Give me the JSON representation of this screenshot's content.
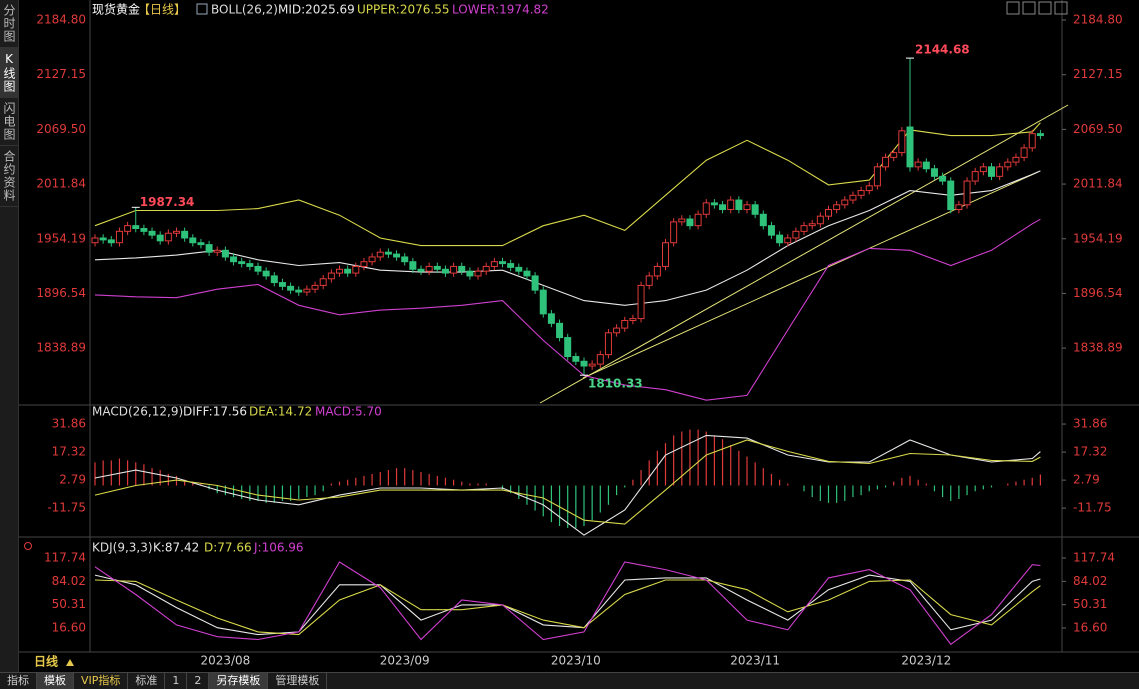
{
  "sidebar": [
    "分时图",
    "K线图",
    "闪电图",
    "合约资料"
  ],
  "period": "日线",
  "tabs": [
    "指标",
    "模板",
    "VIP指标",
    "标准",
    "1",
    "2",
    "另存模板",
    "管理模板"
  ],
  "chart_data": [
    {
      "type": "candlestick",
      "title": "现货黄金",
      "period": "【日线】",
      "indicator": "BOLL(26,2)",
      "up_color": "#e03a3a",
      "down_color": "#2fc27a",
      "categories": [
        null,
        null,
        null,
        null,
        null,
        null,
        null,
        null,
        null,
        null,
        null,
        null,
        null,
        null,
        null,
        null,
        "2023/08",
        null,
        null,
        null,
        null,
        null,
        null,
        null,
        null,
        null,
        null,
        null,
        null,
        null,
        null,
        null,
        null,
        null,
        null,
        null,
        null,
        null,
        "2023/09",
        null,
        null,
        null,
        null,
        null,
        null,
        null,
        null,
        null,
        null,
        null,
        null,
        null,
        null,
        null,
        null,
        null,
        null,
        null,
        null,
        "2023/10",
        null,
        null,
        null,
        null,
        null,
        null,
        null,
        null,
        null,
        null,
        null,
        null,
        null,
        null,
        null,
        null,
        null,
        null,
        null,
        null,
        null,
        "2023/11",
        null,
        null,
        null,
        null,
        null,
        null,
        null,
        null,
        null,
        null,
        null,
        null,
        null,
        null,
        null,
        null,
        null,
        null,
        null,
        null,
        "2023/12",
        null,
        null,
        null,
        null,
        null,
        null,
        null,
        null,
        null,
        null,
        null,
        null,
        null,
        null
      ],
      "candles": [
        [
          1950,
          1959,
          1946,
          1955
        ],
        [
          1955,
          1959,
          1949,
          1953
        ],
        [
          1953,
          1957,
          1946,
          1950
        ],
        [
          1950,
          1966,
          1946,
          1962
        ],
        [
          1962,
          1972,
          1958,
          1968
        ],
        [
          1968,
          1987.34,
          1961,
          1965
        ],
        [
          1965,
          1969,
          1958,
          1962
        ],
        [
          1962,
          1966,
          1954,
          1958
        ],
        [
          1958,
          1962,
          1948,
          1952
        ],
        [
          1952,
          1964,
          1948,
          1960
        ],
        [
          1960,
          1966,
          1956,
          1962
        ],
        [
          1962,
          1966,
          1951,
          1955
        ],
        [
          1955,
          1959,
          1946,
          1950
        ],
        [
          1950,
          1954,
          1944,
          1948
        ],
        [
          1948,
          1952,
          1936,
          1940
        ],
        [
          1940,
          1946,
          1936,
          1942
        ],
        [
          1942,
          1946,
          1931,
          1935
        ],
        [
          1935,
          1939,
          1926,
          1930
        ],
        [
          1930,
          1934,
          1924,
          1928
        ],
        [
          1928,
          1932,
          1921,
          1925
        ],
        [
          1925,
          1929,
          1916,
          1920
        ],
        [
          1920,
          1924,
          1911,
          1915
        ],
        [
          1915,
          1919,
          1904,
          1908
        ],
        [
          1908,
          1912,
          1900,
          1904
        ],
        [
          1904,
          1908,
          1896,
          1900
        ],
        [
          1900,
          1904,
          1894,
          1898
        ],
        [
          1898,
          1905,
          1894,
          1901
        ],
        [
          1901,
          1909,
          1897,
          1905
        ],
        [
          1905,
          1916,
          1901,
          1912
        ],
        [
          1912,
          1922,
          1908,
          1918
        ],
        [
          1918,
          1926,
          1914,
          1922
        ],
        [
          1922,
          1926,
          1914,
          1918
        ],
        [
          1918,
          1929,
          1914,
          1925
        ],
        [
          1925,
          1934,
          1921,
          1930
        ],
        [
          1930,
          1939,
          1926,
          1935
        ],
        [
          1935,
          1944,
          1931,
          1940
        ],
        [
          1940,
          1944,
          1934,
          1938
        ],
        [
          1938,
          1942,
          1931,
          1935
        ],
        [
          1935,
          1939,
          1926,
          1930
        ],
        [
          1930,
          1934,
          1918,
          1922
        ],
        [
          1922,
          1926,
          1916,
          1920
        ],
        [
          1920,
          1929,
          1916,
          1925
        ],
        [
          1925,
          1929,
          1918,
          1922
        ],
        [
          1922,
          1926,
          1914,
          1918
        ],
        [
          1918,
          1929,
          1914,
          1925
        ],
        [
          1925,
          1929,
          1916,
          1920
        ],
        [
          1920,
          1924,
          1911,
          1915
        ],
        [
          1915,
          1924,
          1911,
          1920
        ],
        [
          1920,
          1929,
          1916,
          1925
        ],
        [
          1925,
          1934,
          1921,
          1930
        ],
        [
          1930,
          1934,
          1924,
          1928
        ],
        [
          1928,
          1932,
          1920,
          1924
        ],
        [
          1924,
          1928,
          1916,
          1920
        ],
        [
          1920,
          1924,
          1911,
          1915
        ],
        [
          1915,
          1919,
          1896,
          1900
        ],
        [
          1900,
          1904,
          1871,
          1875
        ],
        [
          1875,
          1879,
          1861,
          1865
        ],
        [
          1865,
          1869,
          1846,
          1850
        ],
        [
          1850,
          1854,
          1826,
          1830
        ],
        [
          1830,
          1834,
          1821,
          1825
        ],
        [
          1825,
          1829,
          1810.33,
          1820
        ],
        [
          1820,
          1826,
          1816,
          1822
        ],
        [
          1822,
          1836,
          1818,
          1832
        ],
        [
          1832,
          1859,
          1828,
          1855
        ],
        [
          1855,
          1864,
          1851,
          1860
        ],
        [
          1860,
          1872,
          1856,
          1868
        ],
        [
          1868,
          1874,
          1864,
          1870
        ],
        [
          1870,
          1909,
          1866,
          1905
        ],
        [
          1905,
          1919,
          1901,
          1915
        ],
        [
          1915,
          1929,
          1911,
          1925
        ],
        [
          1925,
          1954,
          1921,
          1950
        ],
        [
          1950,
          1976,
          1946,
          1972
        ],
        [
          1972,
          1979,
          1968,
          1975
        ],
        [
          1975,
          1979,
          1964,
          1968
        ],
        [
          1968,
          1984,
          1964,
          1980
        ],
        [
          1980,
          1996,
          1976,
          1992
        ],
        [
          1992,
          1996,
          1986,
          1990
        ],
        [
          1990,
          1994,
          1981,
          1985
        ],
        [
          1985,
          1999,
          1981,
          1995
        ],
        [
          1995,
          1999,
          1981,
          1985
        ],
        [
          1985,
          1994,
          1981,
          1990
        ],
        [
          1990,
          1994,
          1976,
          1980
        ],
        [
          1980,
          1984,
          1964,
          1968
        ],
        [
          1968,
          1972,
          1954,
          1958
        ],
        [
          1958,
          1962,
          1946,
          1950
        ],
        [
          1950,
          1959,
          1946,
          1955
        ],
        [
          1955,
          1966,
          1951,
          1962
        ],
        [
          1962,
          1972,
          1958,
          1968
        ],
        [
          1968,
          1974,
          1964,
          1970
        ],
        [
          1970,
          1982,
          1966,
          1978
        ],
        [
          1978,
          1989,
          1974,
          1985
        ],
        [
          1985,
          1994,
          1981,
          1990
        ],
        [
          1990,
          1999,
          1986,
          1995
        ],
        [
          1995,
          2004,
          1991,
          2000
        ],
        [
          2000,
          2009,
          1996,
          2005
        ],
        [
          2005,
          2014,
          2001,
          2010
        ],
        [
          2010,
          2034,
          2006,
          2030
        ],
        [
          2030,
          2044,
          2026,
          2040
        ],
        [
          2040,
          2049,
          2036,
          2045
        ],
        [
          2045,
          2072,
          2041,
          2068
        ],
        [
          2072,
          2144.68,
          2025,
          2030
        ],
        [
          2030,
          2039,
          2026,
          2035
        ],
        [
          2035,
          2039,
          2024,
          2028
        ],
        [
          2028,
          2032,
          2016,
          2020
        ],
        [
          2020,
          2024,
          2011,
          2015
        ],
        [
          2015,
          2019,
          1981,
          1985
        ],
        [
          1985,
          1994,
          1981,
          1990
        ],
        [
          1990,
          2019,
          1986,
          2015
        ],
        [
          2015,
          2029,
          2011,
          2025
        ],
        [
          2025,
          2034,
          2021,
          2030
        ],
        [
          2030,
          2034,
          2016,
          2020
        ],
        [
          2020,
          2034,
          2016,
          2030
        ],
        [
          2030,
          2039,
          2026,
          2035
        ],
        [
          2035,
          2044,
          2031,
          2040
        ],
        [
          2040,
          2054,
          2036,
          2050
        ],
        [
          2050,
          2069,
          2046,
          2065
        ],
        [
          2065,
          2069,
          2059,
          2063
        ]
      ],
      "ylim": [
        1781,
        2197.5
      ],
      "yticks": [
        {
          "value": 2184.8,
          "label": "2184.80"
        },
        2127.15,
        {
          "value": 2069.5,
          "label": "2069.50"
        },
        2011.84,
        1954.19,
        1896.54,
        1838.89
      ],
      "x": [
        0,
        5,
        10,
        15,
        20,
        25,
        30,
        35,
        40,
        45,
        50,
        55,
        60,
        65,
        70,
        75,
        80,
        85,
        90,
        95,
        100,
        105,
        110,
        115,
        116
      ],
      "series": [
        {
          "name": "MID:2025.69",
          "color": "#e8e8e8",
          "values": [
            1932,
            1934,
            1937,
            1942,
            1932,
            1926,
            1929,
            1921,
            1919,
            1919,
            1921,
            1905,
            1889,
            1884,
            1889,
            1900,
            1921,
            1947,
            1968,
            1984,
            2005,
            2000,
            2005,
            2022,
            2025.69
          ]
        },
        {
          "name": "UPPER:2076.55",
          "color": "#d8d84a",
          "values": [
            1968,
            1984,
            1984,
            1984,
            1986,
            1995,
            1979,
            1955,
            1947,
            1947,
            1947,
            1968,
            1979,
            1963,
            2000,
            2037,
            2058,
            2037,
            2011,
            2016,
            2069,
            2063,
            2063,
            2067,
            2076.55
          ]
        },
        {
          "name": "LOWER:1974.82",
          "color": "#d040d0",
          "values": [
            1895,
            1893,
            1892,
            1901,
            1906,
            1884,
            1874,
            1879,
            1881,
            1884,
            1889,
            1847,
            1810,
            1800,
            1795,
            1784,
            1789,
            1858,
            1926,
            1944,
            1942,
            1926,
            1942,
            1970,
            1974.82
          ]
        }
      ]
    },
    {
      "type": "macd",
      "title": "MACD(26,12,9)",
      "up_color": "#e03a3a",
      "down_color": "#2fc27a",
      "histogram": {
        "name": "MACD:5.70",
        "values": [
          12,
          13,
          13,
          14,
          13,
          12,
          11,
          9,
          8,
          6,
          5,
          3,
          2,
          1,
          -2,
          -4,
          -5,
          -6,
          -7,
          -8,
          -8,
          -9,
          -9,
          -8,
          -8,
          -7,
          -6,
          -5,
          -3,
          1,
          2,
          3,
          4,
          5,
          6,
          7,
          8,
          9,
          9,
          8,
          7,
          6,
          5,
          4,
          3,
          2,
          1,
          1,
          1,
          0,
          -2,
          -4,
          -7,
          -10,
          -13,
          -16,
          -19,
          -21,
          -22,
          -22,
          -21,
          -18,
          -14,
          -10,
          -5,
          -1,
          3,
          8,
          13,
          18,
          22,
          26,
          28,
          29,
          29,
          28,
          26,
          24,
          21,
          18,
          15,
          12,
          9,
          6,
          3,
          1,
          0,
          -3,
          -6,
          -8,
          -9,
          -9,
          -8,
          -6,
          -5,
          -3,
          -2,
          -1,
          2,
          4,
          5,
          3,
          1,
          -3,
          -6,
          -8,
          -7,
          -5,
          -3,
          -2,
          -1,
          0,
          1,
          2,
          3,
          4,
          5.7
        ]
      },
      "ylim": [
        -26.7,
        35
      ],
      "yticks": [
        31.86,
        17.32,
        2.79,
        -11.75
      ],
      "x": [
        0,
        5,
        10,
        15,
        20,
        25,
        30,
        35,
        40,
        45,
        50,
        55,
        60,
        65,
        70,
        75,
        80,
        85,
        90,
        95,
        100,
        105,
        110,
        115,
        116
      ],
      "series": [
        {
          "name": "DIFF:17.56",
          "color": "#e8e8e8",
          "values": [
            3.9,
            8,
            3.9,
            -2.4,
            -7.5,
            -10,
            -5,
            -1.3,
            -1.3,
            -2.4,
            -1.3,
            -10,
            -25.7,
            -12.7,
            15.8,
            26,
            24.6,
            15.8,
            12.2,
            12.2,
            23.6,
            15.8,
            12.2,
            14,
            17.56
          ]
        },
        {
          "name": "DEA:14.72",
          "color": "#d8d84a",
          "values": [
            -5,
            0,
            2.8,
            0,
            -5,
            -7.5,
            -6,
            -2.4,
            -2.4,
            -2.4,
            -2.4,
            -6.5,
            -18,
            -20,
            -2.4,
            15.8,
            23.6,
            17.7,
            12.5,
            11.4,
            16.6,
            15.8,
            13,
            12.5,
            14.72
          ]
        }
      ]
    },
    {
      "type": "line",
      "title": "KDJ(9,3,3)",
      "ylim": [
        -15.2,
        132.2
      ],
      "yticks": [
        117.74,
        84.02,
        50.31,
        {
          "value": 16.6,
          "label": "16.60"
        }
      ],
      "x": [
        0,
        5,
        10,
        15,
        20,
        25,
        30,
        35,
        40,
        45,
        50,
        55,
        60,
        65,
        70,
        75,
        80,
        85,
        90,
        95,
        100,
        105,
        110,
        115,
        116
      ],
      "series": [
        {
          "name": "K:87.42",
          "color": "#e8e8e8",
          "values": [
            93,
            79,
            46,
            17,
            7,
            11,
            79,
            79,
            28,
            50,
            50,
            21,
            17,
            86,
            89,
            89,
            57,
            28,
            72,
            93,
            84,
            14,
            28,
            84,
            87.42
          ]
        },
        {
          "name": "D:77.66",
          "color": "#d8d84a",
          "values": [
            86,
            84,
            57,
            31,
            11,
            7,
            57,
            79,
            43,
            43,
            50,
            28,
            17,
            65,
            86,
            86,
            72,
            40,
            57,
            84,
            86,
            36,
            21,
            69,
            77.66
          ]
        },
        {
          "name": "J:106.96",
          "color": "#d040d0",
          "values": [
            105,
            65,
            21,
            4,
            0,
            11,
            112,
            75,
            0,
            57,
            50,
            0,
            11,
            112,
            101,
            86,
            28,
            14,
            89,
            101,
            72,
            -7,
            36,
            108,
            106.96
          ]
        }
      ]
    }
  ]
}
